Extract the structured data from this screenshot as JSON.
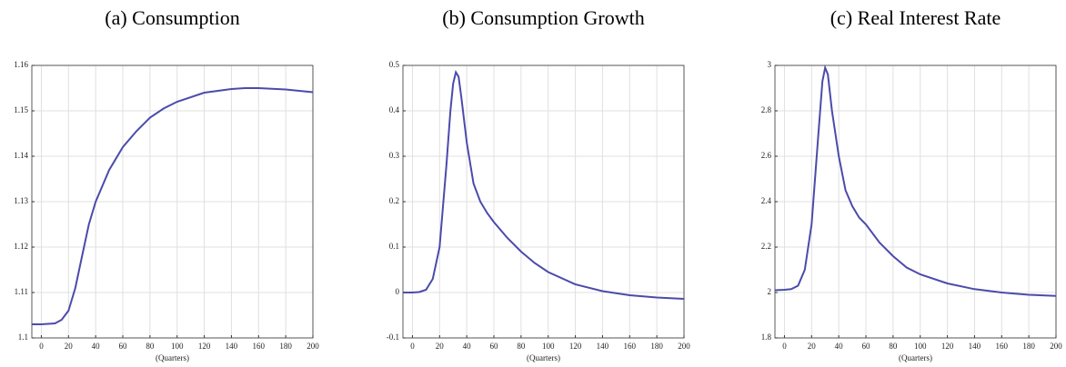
{
  "chart_data": [
    {
      "type": "line",
      "title": "(a) Consumption",
      "x_label": "(Quarters)",
      "x": [
        -7,
        0,
        10,
        15,
        20,
        25,
        30,
        35,
        40,
        50,
        60,
        70,
        80,
        90,
        100,
        120,
        140,
        150,
        160,
        180,
        200
      ],
      "series": [
        {
          "color": "#4b4bab",
          "values": [
            1.103,
            1.103,
            1.1032,
            1.104,
            1.106,
            1.111,
            1.118,
            1.125,
            1.13,
            1.137,
            1.142,
            1.1455,
            1.1485,
            1.1505,
            1.152,
            1.154,
            1.1548,
            1.155,
            1.155,
            1.1547,
            1.1541
          ]
        }
      ],
      "xlim": [
        -7,
        200
      ],
      "xticks": [
        0,
        20,
        40,
        60,
        80,
        100,
        120,
        140,
        160,
        180,
        200
      ],
      "ylim": [
        1.1,
        1.16
      ],
      "yticks": [
        1.1,
        1.11,
        1.12,
        1.13,
        1.14,
        1.15,
        1.16
      ],
      "grid": true
    },
    {
      "type": "line",
      "title": "(b) Consumption Growth",
      "x_label": "(Quarters)",
      "x": [
        -7,
        0,
        5,
        10,
        15,
        20,
        25,
        28,
        30,
        32,
        34,
        36,
        40,
        45,
        50,
        55,
        60,
        70,
        80,
        90,
        100,
        120,
        140,
        160,
        180,
        200
      ],
      "series": [
        {
          "color": "#4b4bab",
          "values": [
            0,
            0,
            0.001,
            0.006,
            0.03,
            0.1,
            0.28,
            0.4,
            0.46,
            0.485,
            0.475,
            0.43,
            0.33,
            0.24,
            0.2,
            0.175,
            0.155,
            0.12,
            0.09,
            0.065,
            0.045,
            0.018,
            0.003,
            -0.006,
            -0.011,
            -0.014
          ]
        }
      ],
      "xlim": [
        -7,
        200
      ],
      "xticks": [
        0,
        20,
        40,
        60,
        80,
        100,
        120,
        140,
        160,
        180,
        200
      ],
      "ylim": [
        -0.1,
        0.5
      ],
      "yticks": [
        -0.1,
        0,
        0.1,
        0.2,
        0.3,
        0.4,
        0.5
      ],
      "grid": true
    },
    {
      "type": "line",
      "title": "(c) Real Interest Rate",
      "x_label": "(Quarters)",
      "x": [
        -7,
        0,
        5,
        10,
        15,
        20,
        25,
        28,
        30,
        32,
        35,
        40,
        45,
        50,
        55,
        60,
        70,
        80,
        90,
        100,
        120,
        140,
        160,
        180,
        200
      ],
      "series": [
        {
          "color": "#4b4bab",
          "values": [
            2.01,
            2.012,
            2.015,
            2.03,
            2.1,
            2.3,
            2.7,
            2.93,
            2.99,
            2.96,
            2.8,
            2.6,
            2.45,
            2.38,
            2.33,
            2.3,
            2.22,
            2.16,
            2.11,
            2.08,
            2.04,
            2.015,
            2.0,
            1.99,
            1.985
          ]
        }
      ],
      "xlim": [
        -7,
        200
      ],
      "xticks": [
        0,
        20,
        40,
        60,
        80,
        100,
        120,
        140,
        160,
        180,
        200
      ],
      "ylim": [
        1.8,
        3
      ],
      "yticks": [
        1.8,
        2,
        2.2,
        2.4,
        2.6,
        2.8,
        3
      ],
      "grid": true
    }
  ]
}
